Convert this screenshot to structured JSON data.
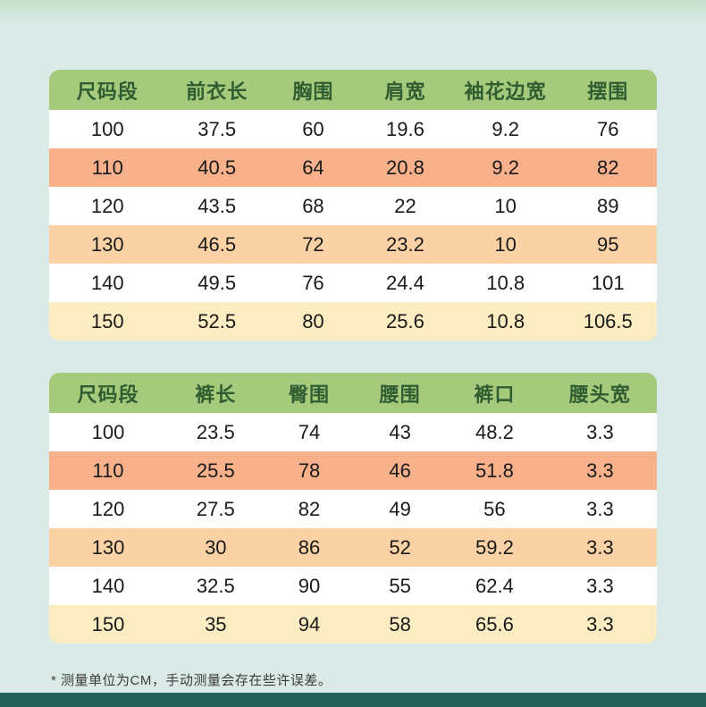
{
  "page": {
    "background_top": "#c9e0cc",
    "background": "#d9eae7",
    "bottom_bar_color": "#266259"
  },
  "colors": {
    "header_bg": "#a5ca7b",
    "header_text": "#2f5c31",
    "body_text": "#1a1a1a",
    "row_colors": [
      "#ffffff",
      "#f8b18b",
      "#ffffff",
      "#fbd2a6",
      "#ffffff",
      "#fcecc2"
    ]
  },
  "note": "* 测量单位为CM，手动测量会存在些许误差。",
  "chart_data": [
    {
      "type": "table",
      "columns": [
        "尺码段",
        "前衣长",
        "胸围",
        "肩宽",
        "袖花边宽",
        "摆围"
      ],
      "rows": [
        [
          100,
          37.5,
          60,
          19.6,
          9.2,
          76
        ],
        [
          110,
          40.5,
          64,
          20.8,
          9.2,
          82
        ],
        [
          120,
          43.5,
          68,
          22,
          10,
          89
        ],
        [
          130,
          46.5,
          72,
          23.2,
          10,
          95
        ],
        [
          140,
          49.5,
          76,
          24.4,
          10.8,
          101
        ],
        [
          150,
          52.5,
          80,
          25.6,
          10.8,
          106.5
        ]
      ]
    },
    {
      "type": "table",
      "columns": [
        "尺码段",
        "裤长",
        "臀围",
        "腰围",
        "裤口",
        "腰头宽"
      ],
      "rows": [
        [
          100,
          23.5,
          74,
          43,
          48.2,
          3.3
        ],
        [
          110,
          25.5,
          78,
          46,
          51.8,
          3.3
        ],
        [
          120,
          27.5,
          82,
          49,
          56,
          3.3
        ],
        [
          130,
          30,
          86,
          52,
          59.2,
          3.3
        ],
        [
          140,
          32.5,
          90,
          55,
          62.4,
          3.3
        ],
        [
          150,
          35,
          94,
          58,
          65.6,
          3.3
        ]
      ]
    }
  ]
}
